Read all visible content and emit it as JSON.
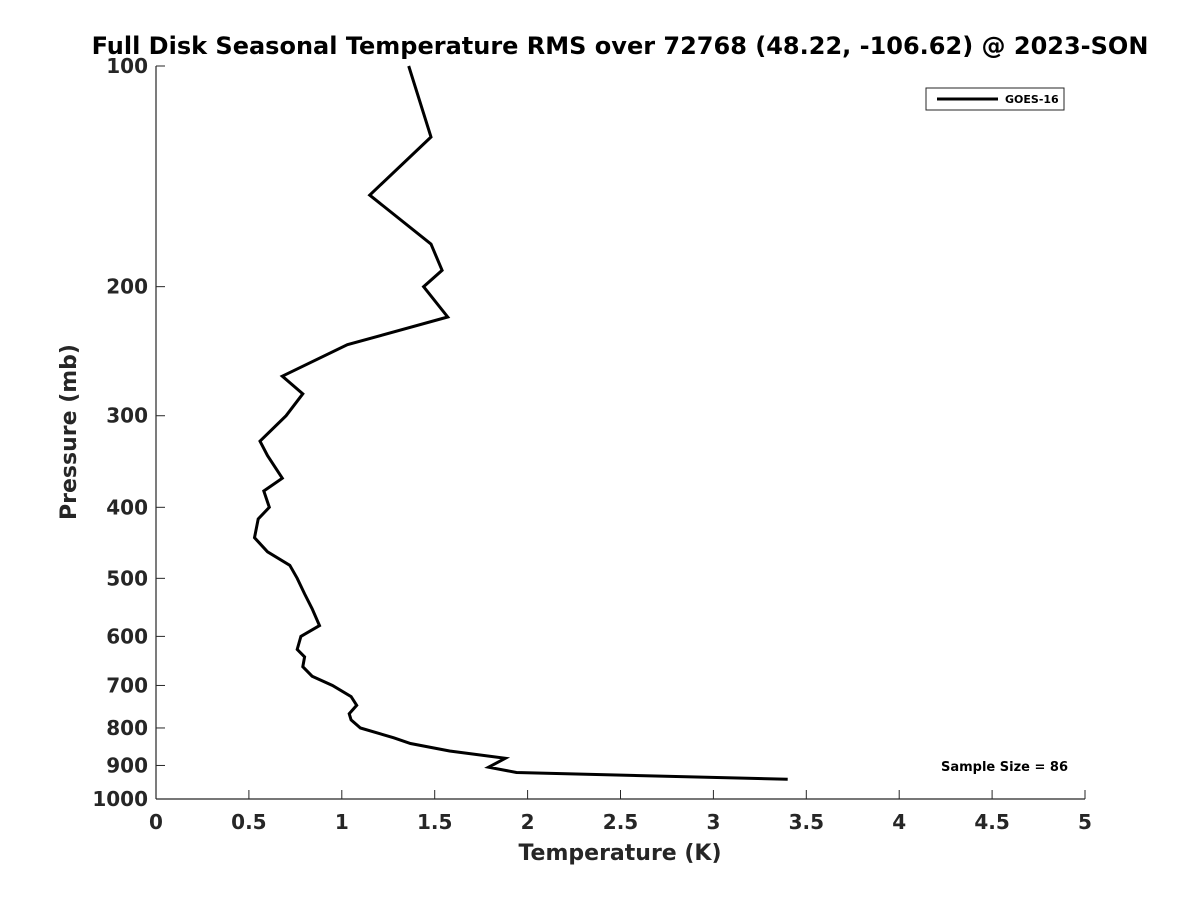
{
  "chart_data": {
    "type": "line",
    "title": "Full Disk Seasonal Temperature RMS over 72768 (48.22, -106.62) @ 2023-SON",
    "xlabel": "Temperature (K)",
    "ylabel": "Pressure (mb)",
    "xlim": [
      0,
      5
    ],
    "ylim": [
      100,
      1000
    ],
    "y_scale": "log",
    "y_reversed": true,
    "x_ticks": [
      0,
      0.5,
      1,
      1.5,
      2,
      2.5,
      3,
      3.5,
      4,
      4.5,
      5
    ],
    "x_tick_labels": [
      "0",
      "0.5",
      "1",
      "1.5",
      "2",
      "2.5",
      "3",
      "3.5",
      "4",
      "4.5",
      "5"
    ],
    "y_ticks": [
      100,
      200,
      300,
      400,
      500,
      600,
      700,
      800,
      900,
      1000
    ],
    "y_tick_labels": [
      "100",
      "200",
      "300",
      "400",
      "500",
      "600",
      "700",
      "800",
      "900",
      "1000"
    ],
    "grid": false,
    "legend": {
      "position": "top-right",
      "entries": [
        "GOES-16"
      ]
    },
    "annotation": "Sample Size = 86",
    "series": [
      {
        "name": "GOES-16",
        "color": "#000000",
        "points": [
          [
            1.36,
            100
          ],
          [
            1.48,
            125
          ],
          [
            1.15,
            150
          ],
          [
            1.48,
            175
          ],
          [
            1.54,
            190
          ],
          [
            1.44,
            200
          ],
          [
            1.57,
            220
          ],
          [
            1.03,
            240
          ],
          [
            0.68,
            265
          ],
          [
            0.79,
            280
          ],
          [
            0.7,
            300
          ],
          [
            0.56,
            325
          ],
          [
            0.6,
            340
          ],
          [
            0.68,
            365
          ],
          [
            0.58,
            380
          ],
          [
            0.61,
            400
          ],
          [
            0.55,
            415
          ],
          [
            0.53,
            440
          ],
          [
            0.6,
            460
          ],
          [
            0.72,
            480
          ],
          [
            0.76,
            500
          ],
          [
            0.8,
            525
          ],
          [
            0.84,
            550
          ],
          [
            0.88,
            580
          ],
          [
            0.78,
            600
          ],
          [
            0.76,
            625
          ],
          [
            0.8,
            640
          ],
          [
            0.79,
            660
          ],
          [
            0.84,
            680
          ],
          [
            0.95,
            700
          ],
          [
            1.05,
            725
          ],
          [
            1.08,
            745
          ],
          [
            1.04,
            765
          ],
          [
            1.05,
            780
          ],
          [
            1.1,
            800
          ],
          [
            1.28,
            825
          ],
          [
            1.37,
            840
          ],
          [
            1.58,
            860
          ],
          [
            1.88,
            880
          ],
          [
            1.79,
            905
          ],
          [
            1.94,
            920
          ],
          [
            3.4,
            940
          ]
        ]
      }
    ]
  }
}
